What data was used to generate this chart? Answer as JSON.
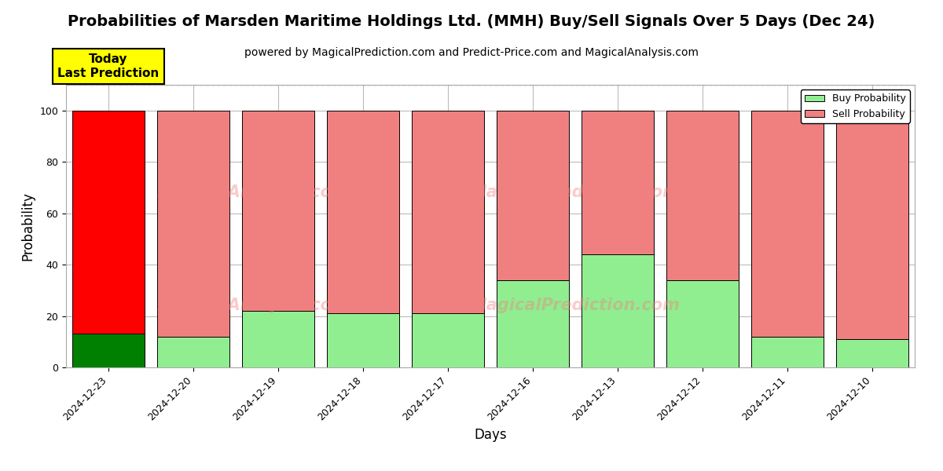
{
  "title": "Probabilities of Marsden Maritime Holdings Ltd. (MMH) Buy/Sell Signals Over 5 Days (Dec 24)",
  "subtitle": "powered by MagicalPrediction.com and Predict-Price.com and MagicalAnalysis.com",
  "xlabel": "Days",
  "ylabel": "Probability",
  "categories": [
    "2024-12-23",
    "2024-12-20",
    "2024-12-19",
    "2024-12-18",
    "2024-12-17",
    "2024-12-16",
    "2024-12-13",
    "2024-12-12",
    "2024-12-11",
    "2024-12-10"
  ],
  "buy_values": [
    13,
    12,
    22,
    21,
    21,
    34,
    44,
    34,
    12,
    11
  ],
  "sell_values": [
    87,
    88,
    78,
    79,
    79,
    66,
    56,
    66,
    88,
    89
  ],
  "buy_color_today": "#008000",
  "sell_color_today": "#FF0000",
  "buy_color_other": "#90EE90",
  "sell_color_other": "#F08080",
  "bar_edge_color": "#000000",
  "today_annotation_text": "Today\nLast Prediction",
  "today_annotation_bg": "#FFFF00",
  "legend_buy": "Buy Probability",
  "legend_sell": "Sell Probability",
  "ylim": [
    0,
    110
  ],
  "yticks": [
    0,
    20,
    40,
    60,
    80,
    100
  ],
  "dashed_line_y": 110,
  "watermark_color": "#F08080",
  "watermark_alpha": 0.4,
  "background_color": "#ffffff",
  "grid_color": "#bbbbbb",
  "title_fontsize": 14,
  "subtitle_fontsize": 10,
  "axis_label_fontsize": 12,
  "tick_fontsize": 9
}
